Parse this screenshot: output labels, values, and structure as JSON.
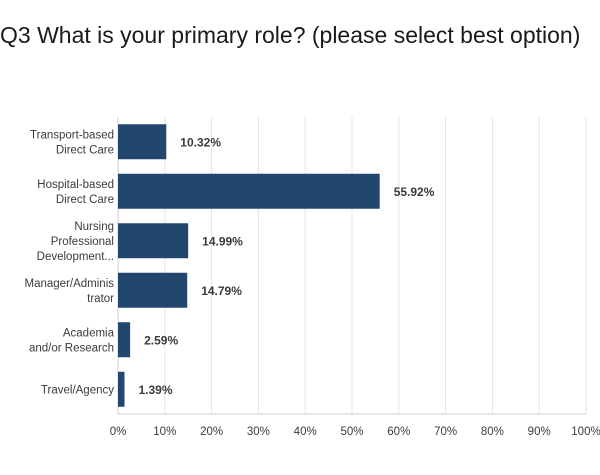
{
  "chart_data": {
    "type": "bar",
    "orientation": "horizontal",
    "title": "Q3 What is your primary role? (please select best option)",
    "categories": [
      [
        "Transport-based",
        "Direct Care"
      ],
      [
        "Hospital-based",
        "Direct Care"
      ],
      [
        "Nursing",
        "Professional",
        "Development..."
      ],
      [
        "Manager/Adminis",
        "trator"
      ],
      [
        "Academia",
        "and/or Research"
      ],
      [
        "Travel/Agency"
      ]
    ],
    "values": [
      10.32,
      55.92,
      14.99,
      14.79,
      2.59,
      1.39
    ],
    "data_labels": [
      "10.32%",
      "55.92%",
      "14.99%",
      "14.79%",
      "2.59%",
      "1.39%"
    ],
    "xlim": [
      0,
      100
    ],
    "x_ticks": [
      0,
      10,
      20,
      30,
      40,
      50,
      60,
      70,
      80,
      90,
      100
    ],
    "x_tick_labels": [
      "0%",
      "10%",
      "20%",
      "30%",
      "40%",
      "50%",
      "60%",
      "70%",
      "80%",
      "90%",
      "100%"
    ],
    "bar_color": "#23466f",
    "grid": true
  }
}
